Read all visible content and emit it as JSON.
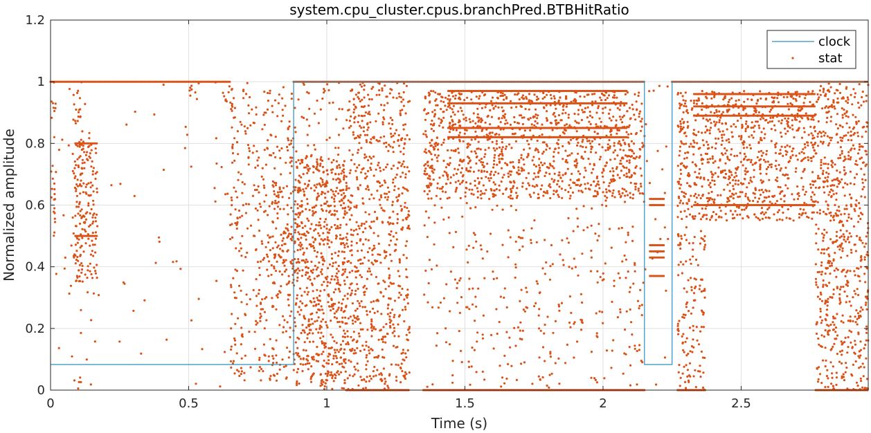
{
  "chart_data": {
    "type": "scatter",
    "title": "system.cpu_cluster.cpus.branchPred.BTBHitRatio",
    "xlabel": "Time (s)",
    "ylabel": "Normalized amplitude",
    "xlim": [
      0,
      2.96
    ],
    "ylim": [
      0,
      1.2
    ],
    "xticks": [
      0,
      0.5,
      1,
      1.5,
      2,
      2.5
    ],
    "xtick_labels": [
      "0",
      "0.5",
      "1",
      "1.5",
      "2",
      "2.5"
    ],
    "yticks": [
      0,
      0.2,
      0.4,
      0.6,
      0.8,
      1,
      1.2
    ],
    "ytick_labels": [
      "0",
      "0.2",
      "0.4",
      "0.6",
      "0.8",
      "1",
      "1.2"
    ],
    "grid": true,
    "legend_position": "top-right",
    "colors": {
      "clock": "#2a8fbd",
      "stat": "#d95319",
      "grid": "#dfdfdf",
      "axis": "#262626"
    },
    "series": [
      {
        "name": "clock",
        "kind": "line",
        "x": [
          0,
          0.65,
          0.65,
          0.88,
          0.88,
          1.07,
          1.07,
          2.15,
          2.15,
          2.25,
          2.25,
          2.96
        ],
        "y": [
          0.083,
          0.083,
          0.083,
          0.083,
          1,
          1,
          1,
          1,
          0.083,
          0.083,
          1,
          1
        ]
      },
      {
        "name": "stat",
        "kind": "scatter",
        "regions": [
          {
            "x": [
              0,
              0.02
            ],
            "y": [
              0.45,
              1.0
            ],
            "density": 0.55
          },
          {
            "x": [
              0.08,
              0.12
            ],
            "y": [
              0.35,
              1.0
            ],
            "density": 0.5
          },
          {
            "x": [
              0.09,
              0.17
            ],
            "y": [
              0.35,
              0.8
            ],
            "density": 0.9
          },
          {
            "x": [
              0.02,
              0.17
            ],
            "y": [
              0.0,
              1.0
            ],
            "density": 0.06
          },
          {
            "x": [
              0.17,
              0.65
            ],
            "y": [
              0.0,
              1.0
            ],
            "density": 0.02
          },
          {
            "x": [
              0.5,
              0.54
            ],
            "y": [
              0.94,
              1.0
            ],
            "density": 0.7
          },
          {
            "x": [
              0.62,
              0.66
            ],
            "y": [
              0.9,
              1.0
            ],
            "density": 0.7
          },
          {
            "x": [
              0.65,
              0.88
            ],
            "y": [
              0.03,
              1.0
            ],
            "density": 0.4
          },
          {
            "x": [
              0.8,
              0.88
            ],
            "y": [
              0.4,
              0.68
            ],
            "density": 0.6
          },
          {
            "x": [
              0.88,
              1.07
            ],
            "y": [
              0.02,
              0.75
            ],
            "density": 0.95
          },
          {
            "x": [
              0.88,
              1.07
            ],
            "y": [
              0.0,
              1.0
            ],
            "density": 0.2
          },
          {
            "x": [
              1.07,
              1.3
            ],
            "y": [
              0.0,
              1.0
            ],
            "density": 0.7
          },
          {
            "x": [
              1.35,
              2.15
            ],
            "y": [
              0.62,
              0.97
            ],
            "density": 0.95
          },
          {
            "x": [
              1.35,
              2.15
            ],
            "y": [
              0.0,
              0.62
            ],
            "density": 0.15
          },
          {
            "x": [
              2.15,
              2.25
            ],
            "y": [
              0.0,
              1.0
            ],
            "density": 0.05
          },
          {
            "x": [
              2.27,
              2.77
            ],
            "y": [
              0.55,
              0.97
            ],
            "density": 0.95
          },
          {
            "x": [
              2.27,
              2.37
            ],
            "y": [
              0.0,
              0.55
            ],
            "density": 0.55
          },
          {
            "x": [
              2.77,
              2.96
            ],
            "y": [
              0.0,
              1.0
            ],
            "density": 0.8
          }
        ],
        "bands": [
          {
            "x": [
              0.0,
              0.18
            ],
            "y": 1.0
          },
          {
            "x": [
              0.18,
              0.65
            ],
            "y": 1.0
          },
          {
            "x": [
              0.88,
              2.15
            ],
            "y": 1.0
          },
          {
            "x": [
              2.25,
              2.96
            ],
            "y": 1.0
          },
          {
            "x": [
              1.07,
              1.3
            ],
            "y": 0.0
          },
          {
            "x": [
              1.35,
              2.15
            ],
            "y": 0.0
          },
          {
            "x": [
              2.27,
              2.37
            ],
            "y": 0.0
          },
          {
            "x": [
              2.77,
              2.96
            ],
            "y": 0.0
          },
          {
            "x": [
              1.44,
              2.09
            ],
            "y": 0.97
          },
          {
            "x": [
              1.44,
              2.09
            ],
            "y": 0.93
          },
          {
            "x": [
              1.44,
              2.09
            ],
            "y": 0.85
          },
          {
            "x": [
              1.44,
              2.09
            ],
            "y": 0.82
          },
          {
            "x": [
              2.33,
              2.77
            ],
            "y": 0.96
          },
          {
            "x": [
              2.33,
              2.77
            ],
            "y": 0.92
          },
          {
            "x": [
              2.33,
              2.77
            ],
            "y": 0.89
          },
          {
            "x": [
              2.33,
              2.77
            ],
            "y": 0.6
          },
          {
            "x": [
              2.17,
              2.22
            ],
            "y": 0.62
          },
          {
            "x": [
              2.17,
              2.22
            ],
            "y": 0.6
          },
          {
            "x": [
              2.17,
              2.22
            ],
            "y": 0.47
          },
          {
            "x": [
              2.17,
              2.22
            ],
            "y": 0.45
          },
          {
            "x": [
              2.17,
              2.22
            ],
            "y": 0.43
          },
          {
            "x": [
              2.17,
              2.22
            ],
            "y": 0.37
          },
          {
            "x": [
              0.09,
              0.17
            ],
            "y": 0.8
          },
          {
            "x": [
              0.09,
              0.17
            ],
            "y": 0.5
          }
        ]
      }
    ]
  }
}
